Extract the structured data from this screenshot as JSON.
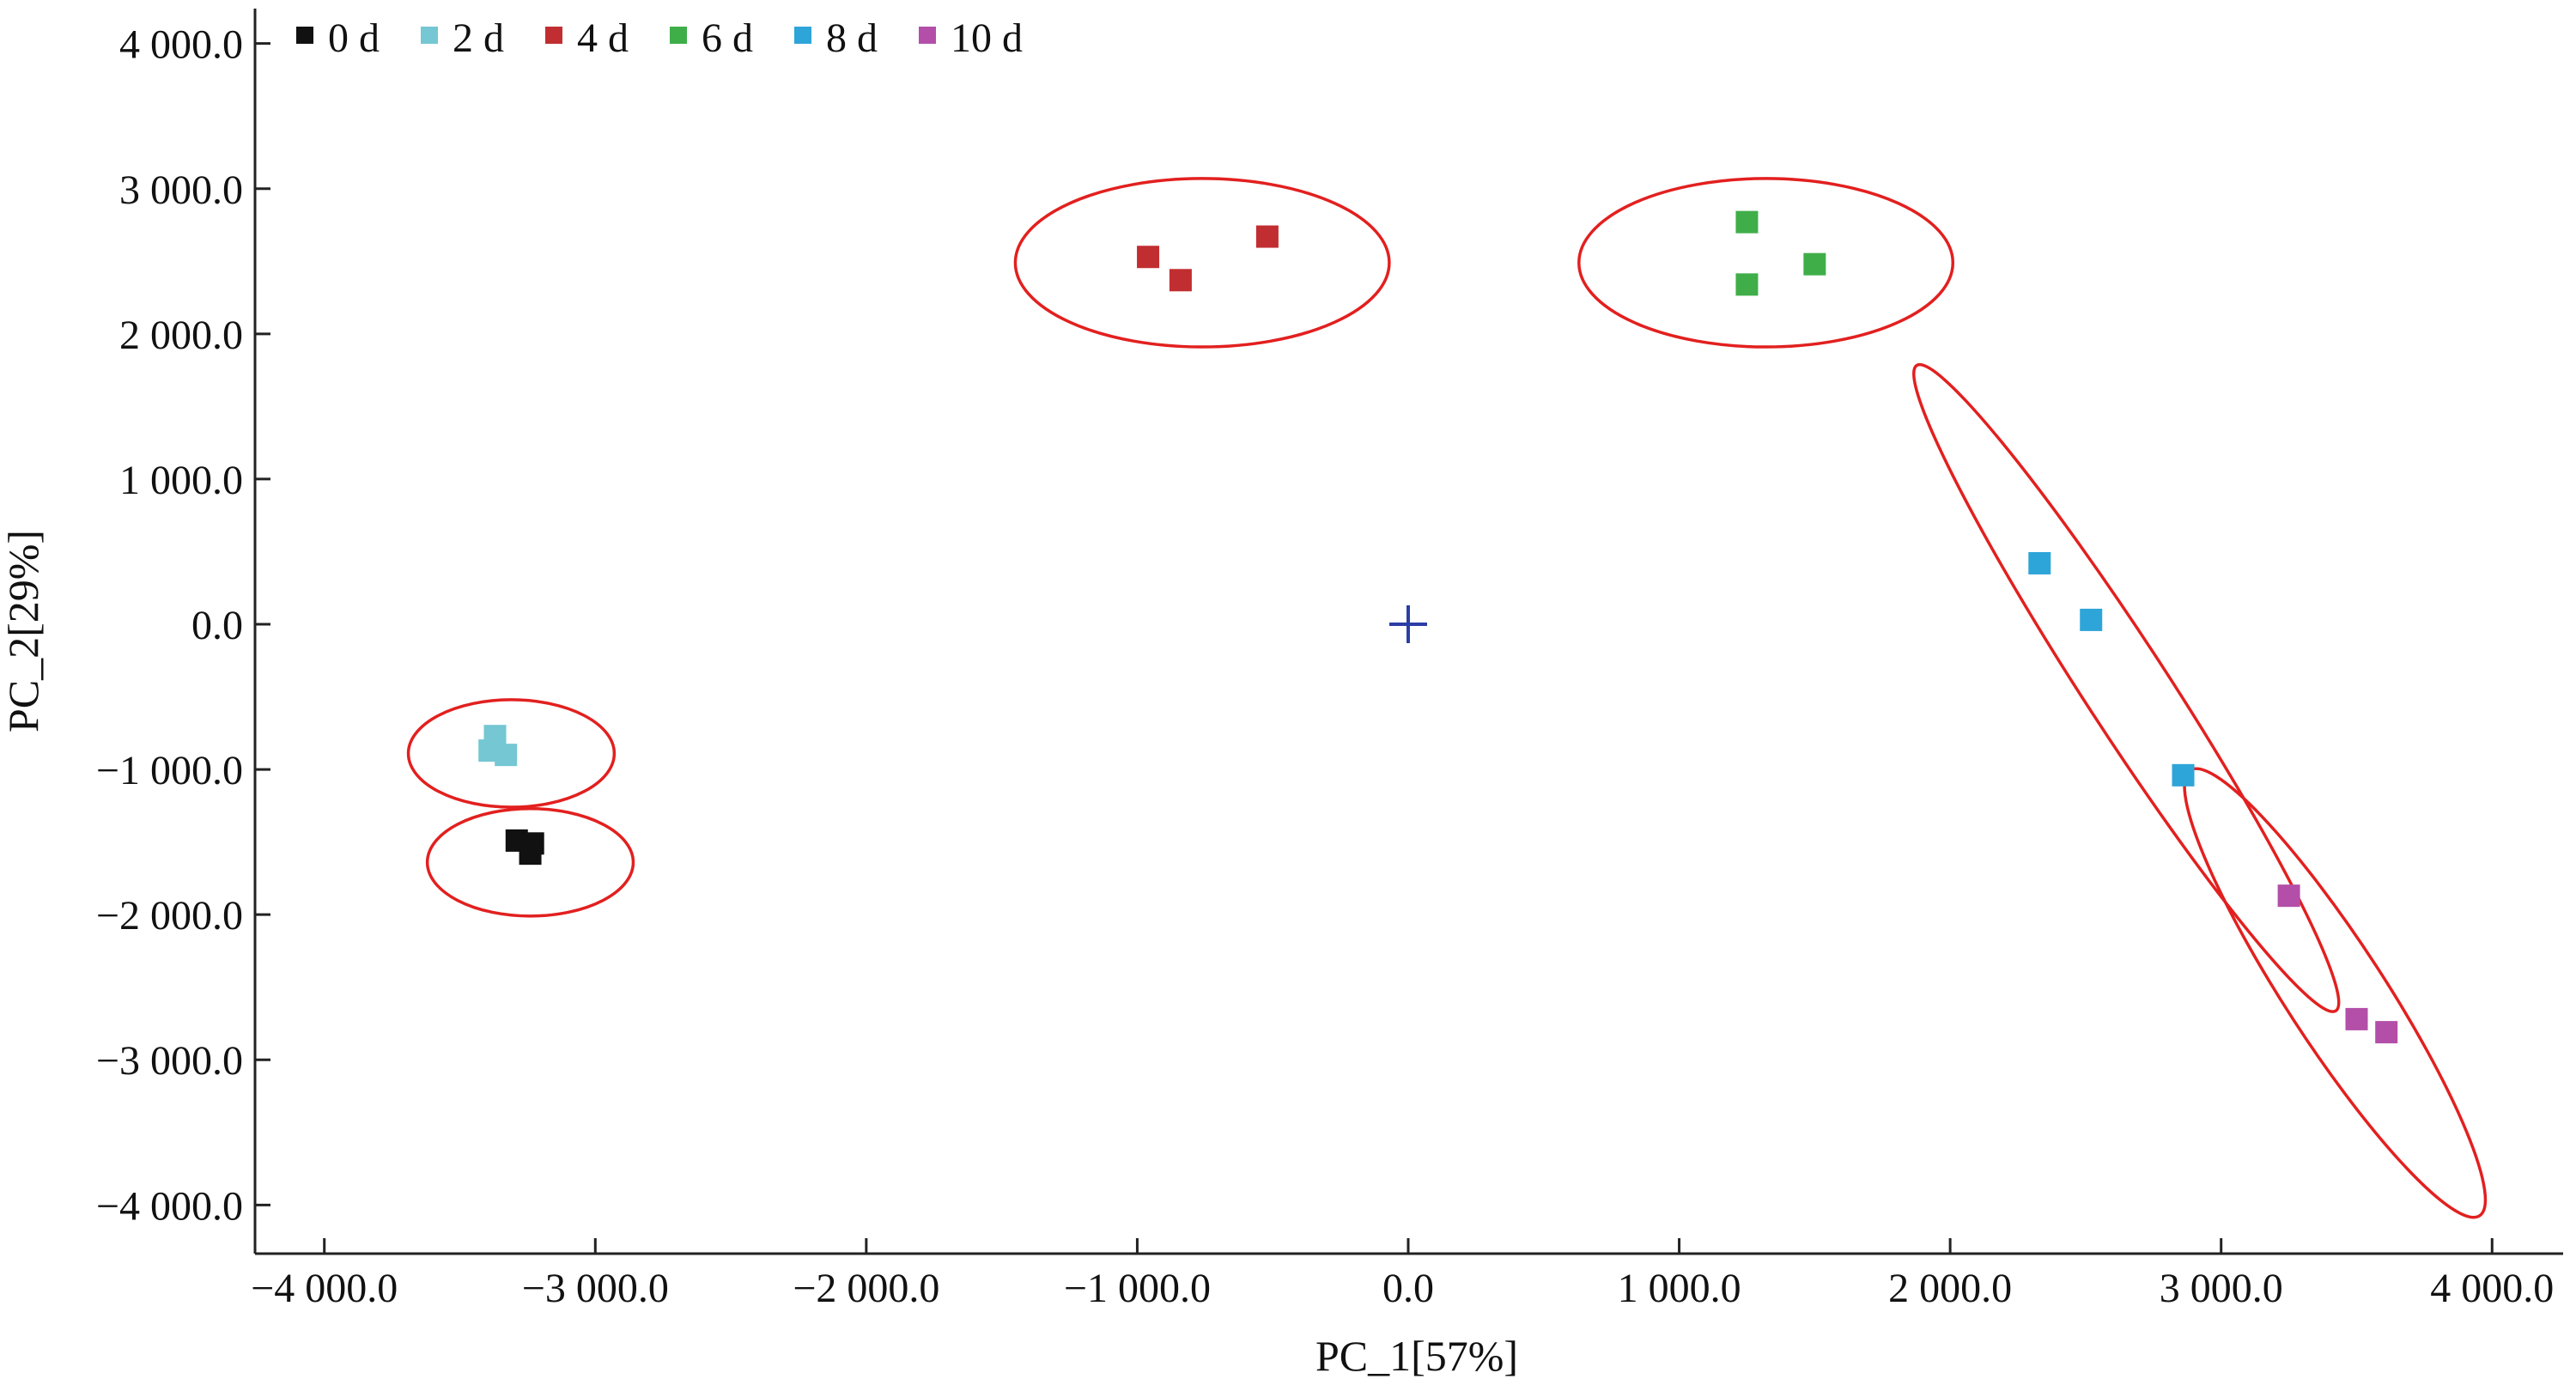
{
  "chart_data": {
    "type": "scatter",
    "xlabel": "PC_1[57%]",
    "ylabel": "PC_2[29%]",
    "xlim": [
      -4200,
      4300
    ],
    "ylim": [
      -4300,
      4200
    ],
    "x_ticks": [
      {
        "value": -4000,
        "label": "−4 000.0"
      },
      {
        "value": -3000,
        "label": "−3 000.0"
      },
      {
        "value": -2000,
        "label": "−2 000.0"
      },
      {
        "value": -1000,
        "label": "−1 000.0"
      },
      {
        "value": 0,
        "label": "0.0"
      },
      {
        "value": 1000,
        "label": "1 000.0"
      },
      {
        "value": 2000,
        "label": "2 000.0"
      },
      {
        "value": 3000,
        "label": "3 000.0"
      },
      {
        "value": 4000,
        "label": "4 000.0"
      }
    ],
    "y_ticks": [
      {
        "value": 4000,
        "label": "4 000.0"
      },
      {
        "value": 3000,
        "label": "3 000.0"
      },
      {
        "value": 2000,
        "label": "2 000.0"
      },
      {
        "value": 1000,
        "label": "1 000.0"
      },
      {
        "value": 0,
        "label": "0.0"
      },
      {
        "value": -1000,
        "label": "−1 000.0"
      },
      {
        "value": -2000,
        "label": "−2 000.0"
      },
      {
        "value": -3000,
        "label": "−3 000.0"
      },
      {
        "value": -4000,
        "label": "−4 000.0"
      }
    ],
    "grid": false,
    "legend": {
      "position": "top-left"
    },
    "series": [
      {
        "name": "0 d",
        "color": "#111111",
        "points": [
          {
            "x": -3290,
            "y": -1490
          },
          {
            "x": -3230,
            "y": -1510
          },
          {
            "x": -3240,
            "y": -1580
          }
        ]
      },
      {
        "name": "2 d",
        "color": "#74c7d3",
        "points": [
          {
            "x": -3370,
            "y": -770
          },
          {
            "x": -3390,
            "y": -870
          },
          {
            "x": -3330,
            "y": -900
          }
        ]
      },
      {
        "name": "4 d",
        "color": "#c12e31",
        "points": [
          {
            "x": -960,
            "y": 2530
          },
          {
            "x": -840,
            "y": 2370
          },
          {
            "x": -520,
            "y": 2670
          }
        ]
      },
      {
        "name": "6 d",
        "color": "#3fae49",
        "points": [
          {
            "x": 1250,
            "y": 2770
          },
          {
            "x": 1500,
            "y": 2480
          },
          {
            "x": 1250,
            "y": 2340
          }
        ]
      },
      {
        "name": "8 d",
        "color": "#2ea5d8",
        "points": [
          {
            "x": 2330,
            "y": 420
          },
          {
            "x": 2520,
            "y": 30
          },
          {
            "x": 2860,
            "y": -1040
          }
        ]
      },
      {
        "name": "10 d",
        "color": "#b34fa8",
        "points": [
          {
            "x": 3250,
            "y": -1870
          },
          {
            "x": 3500,
            "y": -2720
          },
          {
            "x": 3610,
            "y": -2810
          }
        ]
      }
    ],
    "cluster_ellipses": [
      {
        "group": "0 d",
        "cx": -3240,
        "cy": -1640,
        "rx": 380,
        "ry": 370,
        "angle": 0
      },
      {
        "group": "2 d",
        "cx": -3310,
        "cy": -890,
        "rx": 380,
        "ry": 370,
        "angle": 0
      },
      {
        "group": "4 d",
        "cx": -760,
        "cy": 2490,
        "rx": 690,
        "ry": 580,
        "angle": 0
      },
      {
        "group": "6 d",
        "cx": 1320,
        "cy": 2490,
        "rx": 690,
        "ry": 580,
        "angle": 0
      },
      {
        "group": "8 d",
        "cx": 2650,
        "cy": -440,
        "rx": 1420,
        "ry": 290,
        "angle": 57
      },
      {
        "group": "10 d",
        "cx": 3420,
        "cy": -2540,
        "rx": 980,
        "ry": 340,
        "angle": 57
      }
    ],
    "origin_marker": {
      "x": 0,
      "y": 0,
      "color": "#2b3ea6"
    }
  }
}
